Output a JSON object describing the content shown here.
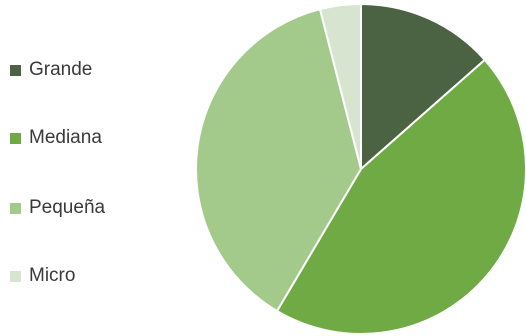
{
  "chart_data": {
    "type": "pie",
    "title": "",
    "legend_position": "left",
    "categories": [
      "Grande",
      "Mediana",
      "Pequeña",
      "Micro"
    ],
    "values": [
      13.5,
      45,
      37.5,
      4
    ],
    "colors": [
      "#4b6343",
      "#70aa45",
      "#a3c98b",
      "#d7e4cf"
    ],
    "slice_border_color": "#ffffff"
  }
}
